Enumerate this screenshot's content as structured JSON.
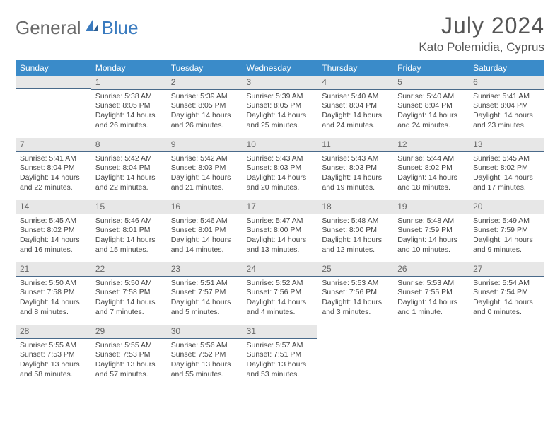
{
  "logo": {
    "part1": "General",
    "part2": "Blue"
  },
  "title": "July 2024",
  "location": "Kato Polemidia, Cyprus",
  "colors": {
    "header_bg": "#3a8bc9",
    "header_text": "#ffffff",
    "daynum_bg": "#e7e7e7",
    "daynum_border": "#4a6a8a",
    "body_text": "#444",
    "logo_gray": "#6a6a6a",
    "logo_blue": "#3a7bbf"
  },
  "weekdays": [
    "Sunday",
    "Monday",
    "Tuesday",
    "Wednesday",
    "Thursday",
    "Friday",
    "Saturday"
  ],
  "weeks": [
    [
      null,
      {
        "n": "1",
        "sr": "5:38 AM",
        "ss": "8:05 PM",
        "dl": "14 hours and 26 minutes."
      },
      {
        "n": "2",
        "sr": "5:39 AM",
        "ss": "8:05 PM",
        "dl": "14 hours and 26 minutes."
      },
      {
        "n": "3",
        "sr": "5:39 AM",
        "ss": "8:05 PM",
        "dl": "14 hours and 25 minutes."
      },
      {
        "n": "4",
        "sr": "5:40 AM",
        "ss": "8:04 PM",
        "dl": "14 hours and 24 minutes."
      },
      {
        "n": "5",
        "sr": "5:40 AM",
        "ss": "8:04 PM",
        "dl": "14 hours and 24 minutes."
      },
      {
        "n": "6",
        "sr": "5:41 AM",
        "ss": "8:04 PM",
        "dl": "14 hours and 23 minutes."
      }
    ],
    [
      {
        "n": "7",
        "sr": "5:41 AM",
        "ss": "8:04 PM",
        "dl": "14 hours and 22 minutes."
      },
      {
        "n": "8",
        "sr": "5:42 AM",
        "ss": "8:04 PM",
        "dl": "14 hours and 22 minutes."
      },
      {
        "n": "9",
        "sr": "5:42 AM",
        "ss": "8:03 PM",
        "dl": "14 hours and 21 minutes."
      },
      {
        "n": "10",
        "sr": "5:43 AM",
        "ss": "8:03 PM",
        "dl": "14 hours and 20 minutes."
      },
      {
        "n": "11",
        "sr": "5:43 AM",
        "ss": "8:03 PM",
        "dl": "14 hours and 19 minutes."
      },
      {
        "n": "12",
        "sr": "5:44 AM",
        "ss": "8:02 PM",
        "dl": "14 hours and 18 minutes."
      },
      {
        "n": "13",
        "sr": "5:45 AM",
        "ss": "8:02 PM",
        "dl": "14 hours and 17 minutes."
      }
    ],
    [
      {
        "n": "14",
        "sr": "5:45 AM",
        "ss": "8:02 PM",
        "dl": "14 hours and 16 minutes."
      },
      {
        "n": "15",
        "sr": "5:46 AM",
        "ss": "8:01 PM",
        "dl": "14 hours and 15 minutes."
      },
      {
        "n": "16",
        "sr": "5:46 AM",
        "ss": "8:01 PM",
        "dl": "14 hours and 14 minutes."
      },
      {
        "n": "17",
        "sr": "5:47 AM",
        "ss": "8:00 PM",
        "dl": "14 hours and 13 minutes."
      },
      {
        "n": "18",
        "sr": "5:48 AM",
        "ss": "8:00 PM",
        "dl": "14 hours and 12 minutes."
      },
      {
        "n": "19",
        "sr": "5:48 AM",
        "ss": "7:59 PM",
        "dl": "14 hours and 10 minutes."
      },
      {
        "n": "20",
        "sr": "5:49 AM",
        "ss": "7:59 PM",
        "dl": "14 hours and 9 minutes."
      }
    ],
    [
      {
        "n": "21",
        "sr": "5:50 AM",
        "ss": "7:58 PM",
        "dl": "14 hours and 8 minutes."
      },
      {
        "n": "22",
        "sr": "5:50 AM",
        "ss": "7:58 PM",
        "dl": "14 hours and 7 minutes."
      },
      {
        "n": "23",
        "sr": "5:51 AM",
        "ss": "7:57 PM",
        "dl": "14 hours and 5 minutes."
      },
      {
        "n": "24",
        "sr": "5:52 AM",
        "ss": "7:56 PM",
        "dl": "14 hours and 4 minutes."
      },
      {
        "n": "25",
        "sr": "5:53 AM",
        "ss": "7:56 PM",
        "dl": "14 hours and 3 minutes."
      },
      {
        "n": "26",
        "sr": "5:53 AM",
        "ss": "7:55 PM",
        "dl": "14 hours and 1 minute."
      },
      {
        "n": "27",
        "sr": "5:54 AM",
        "ss": "7:54 PM",
        "dl": "14 hours and 0 minutes."
      }
    ],
    [
      {
        "n": "28",
        "sr": "5:55 AM",
        "ss": "7:53 PM",
        "dl": "13 hours and 58 minutes."
      },
      {
        "n": "29",
        "sr": "5:55 AM",
        "ss": "7:53 PM",
        "dl": "13 hours and 57 minutes."
      },
      {
        "n": "30",
        "sr": "5:56 AM",
        "ss": "7:52 PM",
        "dl": "13 hours and 55 minutes."
      },
      {
        "n": "31",
        "sr": "5:57 AM",
        "ss": "7:51 PM",
        "dl": "13 hours and 53 minutes."
      },
      null,
      null,
      null
    ]
  ],
  "labels": {
    "sunrise": "Sunrise:",
    "sunset": "Sunset:",
    "daylight": "Daylight:"
  }
}
